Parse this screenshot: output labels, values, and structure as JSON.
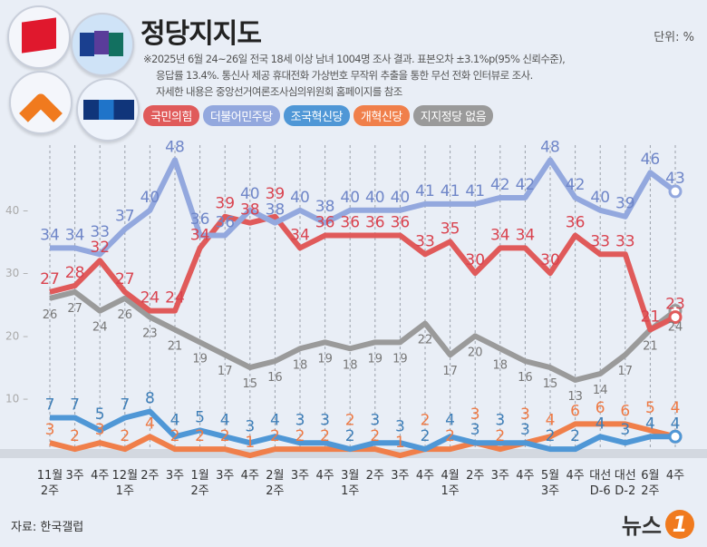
{
  "header": {
    "title": "정당지지도",
    "unit": "단위: %",
    "notes": [
      "※2025년 6월 24~26일 전국 18세 이상 남녀 1004명 조사 결과. 표본오차 ±3.1%p(95% 신뢰수준),",
      "응답률 13.4%. 통신사 제공 휴대전화 가상번호 무작위 추출을 통한 무선 전화 인터뷰로 조사.",
      "자세한 내용은 중앙선거여론조사심의위원회 홈페이지를 참조"
    ]
  },
  "footer": {
    "source": "자료: 한국갤럽",
    "brand": "뉴스",
    "brand_mark": "1"
  },
  "chart_data": {
    "type": "line",
    "categories": [
      "11월\n2주",
      "3주",
      "4주",
      "12월\n1주",
      "2주",
      "3주",
      "1월\n2주",
      "3주",
      "4주",
      "2월\n2주",
      "3주",
      "4주",
      "3월\n1주",
      "2주",
      "3주",
      "4주",
      "4월\n1주",
      "2주",
      "3주",
      "4주",
      "5월\n3주",
      "4주",
      "대선\nD-6",
      "대선\nD-2",
      "6월\n2주",
      "4주"
    ],
    "yticks": [
      10,
      20,
      30,
      40
    ],
    "ylim": [
      0,
      50
    ],
    "grid": "vertical dashed",
    "legend": "top-left",
    "series": [
      {
        "name": "국민의힘",
        "color": "#e05a5a",
        "label": "#d9434f",
        "values": [
          27,
          28,
          32,
          27,
          24,
          24,
          34,
          39,
          38,
          39,
          34,
          36,
          36,
          36,
          36,
          33,
          35,
          30,
          34,
          34,
          30,
          36,
          33,
          33,
          21,
          23
        ]
      },
      {
        "name": "더불어민주당",
        "color": "#93a8de",
        "label": "#6f86c8",
        "values": [
          34,
          34,
          33,
          37,
          40,
          48,
          36,
          36,
          40,
          38,
          40,
          38,
          40,
          40,
          40,
          41,
          41,
          41,
          42,
          42,
          48,
          42,
          40,
          39,
          46,
          43
        ]
      },
      {
        "name": "조국혁신당",
        "color": "#4f97d6",
        "label": "#3f7fb8",
        "values": [
          7,
          7,
          5,
          7,
          8,
          4,
          5,
          4,
          3,
          4,
          3,
          3,
          2,
          3,
          3,
          2,
          4,
          3,
          3,
          3,
          2,
          2,
          4,
          3,
          4,
          4
        ]
      },
      {
        "name": "개혁신당",
        "color": "#f07f4a",
        "label": "#ee7a45",
        "values": [
          3,
          2,
          3,
          2,
          4,
          2,
          2,
          2,
          1,
          2,
          2,
          2,
          2,
          2,
          1,
          2,
          2,
          3,
          2,
          3,
          4,
          6,
          6,
          6,
          5,
          4
        ]
      },
      {
        "name": "지지정당 없음",
        "color": "#9a9a9a",
        "label": "#777",
        "values": [
          26,
          27,
          24,
          26,
          23,
          21,
          19,
          17,
          15,
          16,
          18,
          19,
          18,
          19,
          19,
          22,
          17,
          20,
          18,
          16,
          15,
          13,
          14,
          17,
          21,
          24
        ]
      }
    ]
  }
}
